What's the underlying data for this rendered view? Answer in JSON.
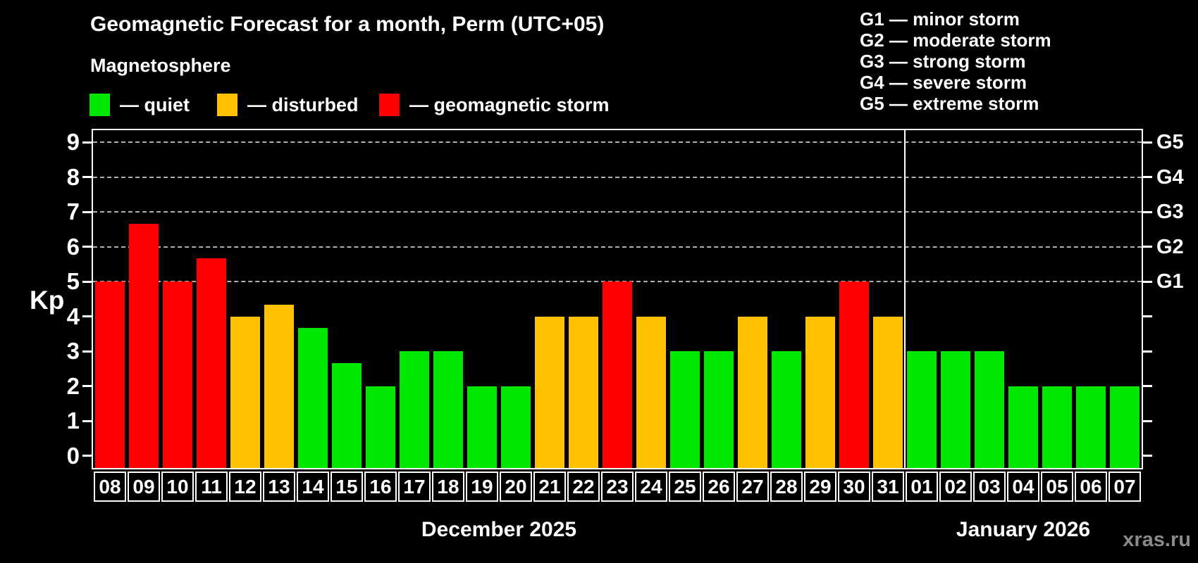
{
  "title": "Geomagnetic Forecast for a month, Perm (UTC+05)",
  "subtitle": "Magnetosphere",
  "legend": [
    {
      "label": "— quiet",
      "status": "quiet"
    },
    {
      "label": "— disturbed",
      "status": "disturbed"
    },
    {
      "label": "— geomagnetic storm",
      "status": "storm"
    }
  ],
  "g_scale_legend": [
    "G1 — minor storm",
    "G2 — moderate storm",
    "G3 — strong storm",
    "G4 — severe storm",
    "G5 — extreme storm"
  ],
  "watermark": "xras.ru",
  "colors": {
    "quiet": "#00e800",
    "disturbed": "#ffc000",
    "storm": "#ff0000",
    "grid": "#b0b0b0",
    "axis": "#ffffff",
    "watermark": "#8a8a8a"
  },
  "chart_data": {
    "type": "bar",
    "ylabel": "Kp",
    "ylim": [
      -0.35,
      9.35
    ],
    "y_ticks": [
      0,
      1,
      2,
      3,
      4,
      5,
      6,
      7,
      8,
      9
    ],
    "grid_levels": [
      5,
      6,
      7,
      8,
      9
    ],
    "right_axis_labels": [
      {
        "label": "G1",
        "kp": 5
      },
      {
        "label": "G2",
        "kp": 6
      },
      {
        "label": "G3",
        "kp": 7
      },
      {
        "label": "G4",
        "kp": 8
      },
      {
        "label": "G5",
        "kp": 9
      }
    ],
    "legend_position": "top",
    "grid": "dashed horizontal at storm levels only",
    "sections": [
      {
        "label": "December 2025",
        "days": 24
      },
      {
        "label": "January 2026",
        "days": 7
      }
    ],
    "categories": [
      "08",
      "09",
      "10",
      "11",
      "12",
      "13",
      "14",
      "15",
      "16",
      "17",
      "18",
      "19",
      "20",
      "21",
      "22",
      "23",
      "24",
      "25",
      "26",
      "27",
      "28",
      "29",
      "30",
      "31",
      "01",
      "02",
      "03",
      "04",
      "05",
      "06",
      "07"
    ],
    "values": [
      5,
      6.67,
      5,
      5.67,
      4,
      4.33,
      3.67,
      2.67,
      2,
      3,
      3,
      2,
      2,
      4,
      4,
      5,
      4,
      3,
      3,
      4,
      3,
      4,
      5,
      4,
      3,
      3,
      3,
      2,
      2,
      2,
      2
    ],
    "statuses": [
      "storm",
      "storm",
      "storm",
      "storm",
      "disturbed",
      "disturbed",
      "quiet",
      "quiet",
      "quiet",
      "quiet",
      "quiet",
      "quiet",
      "quiet",
      "disturbed",
      "disturbed",
      "storm",
      "disturbed",
      "quiet",
      "quiet",
      "disturbed",
      "quiet",
      "disturbed",
      "storm",
      "disturbed",
      "quiet",
      "quiet",
      "quiet",
      "quiet",
      "quiet",
      "quiet",
      "quiet"
    ]
  }
}
